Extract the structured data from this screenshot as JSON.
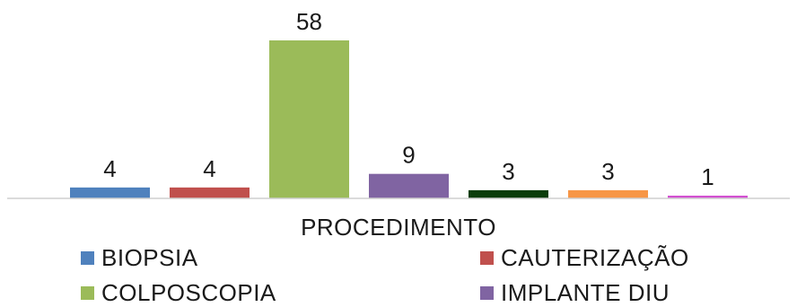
{
  "chart_data": {
    "type": "bar",
    "xlabel": "PROCEDIMENTO",
    "categories": [
      "BIOPSIA",
      "CAUTERIZAÇÃO",
      "COLPOSCOPIA",
      "IMPLANTE DIU",
      "",
      "",
      ""
    ],
    "values": [
      4,
      4,
      58,
      9,
      3,
      3,
      1
    ],
    "colors": [
      "#4f81bd",
      "#c0504d",
      "#9bbb59",
      "#8064a2",
      "#0b3d0b",
      "#f79646",
      "#d24fd0"
    ],
    "ylim": [
      0,
      58
    ],
    "grid": false,
    "data_labels": true,
    "legend": [
      {
        "label": "BIOPSIA",
        "color": "#4f81bd"
      },
      {
        "label": "CAUTERIZAÇÃO",
        "color": "#c0504d"
      },
      {
        "label": "COLPOSCOPIA",
        "color": "#9bbb59"
      },
      {
        "label": "IMPLANTE DIU",
        "color": "#8064a2"
      }
    ],
    "legend_position": "bottom"
  }
}
